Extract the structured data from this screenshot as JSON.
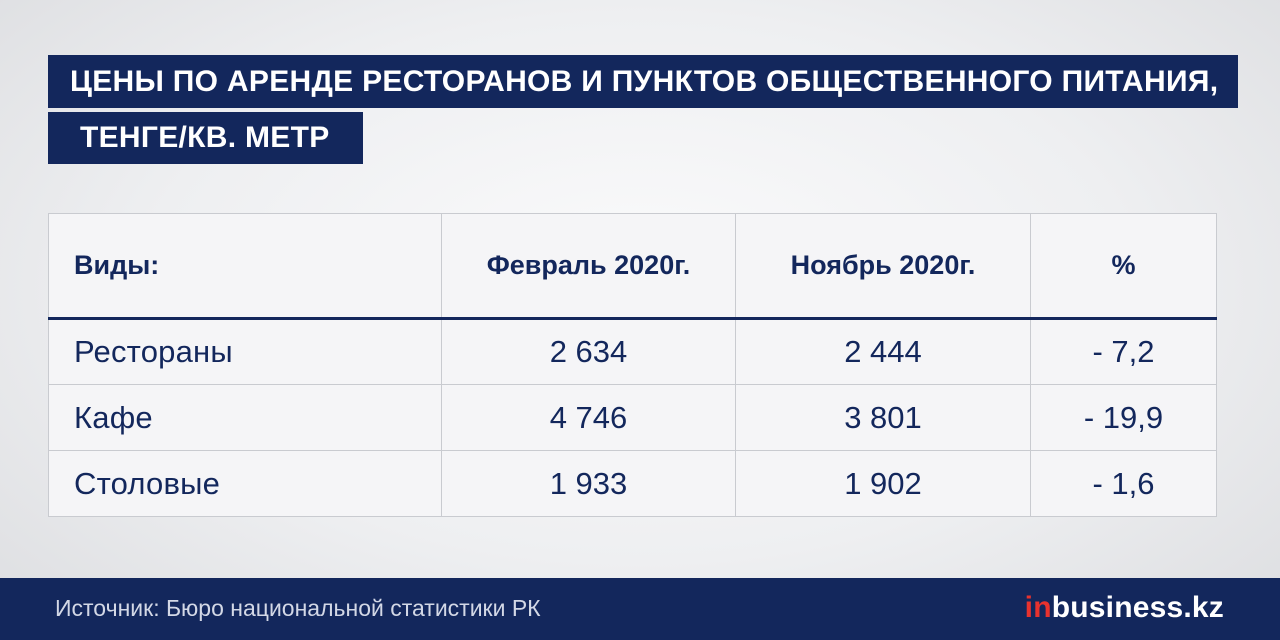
{
  "title": {
    "line1": "ЦЕНЫ ПО АРЕНДЕ РЕСТОРАНОВ И ПУНКТОВ ОБЩЕСТВЕННОГО ПИТАНИЯ,",
    "line2": "ТЕНГЕ/КВ. МЕТР"
  },
  "table": {
    "headers": [
      "Виды:",
      "Февраль 2020г.",
      "Ноябрь  2020г.",
      "%"
    ],
    "rows": [
      [
        "Рестораны",
        "2 634",
        "2 444",
        "- 7,2"
      ],
      [
        "Кафе",
        "4 746",
        "3 801",
        "- 19,9"
      ],
      [
        "Столовые",
        "1 933",
        "1 902",
        "- 1,6"
      ]
    ]
  },
  "footer": {
    "source": "Источник: Бюро национальной статистики РК",
    "logo_prefix": "in",
    "logo_rest": "business.kz"
  },
  "colors": {
    "brand_navy": "#13275c",
    "logo_red": "#e8322e"
  }
}
